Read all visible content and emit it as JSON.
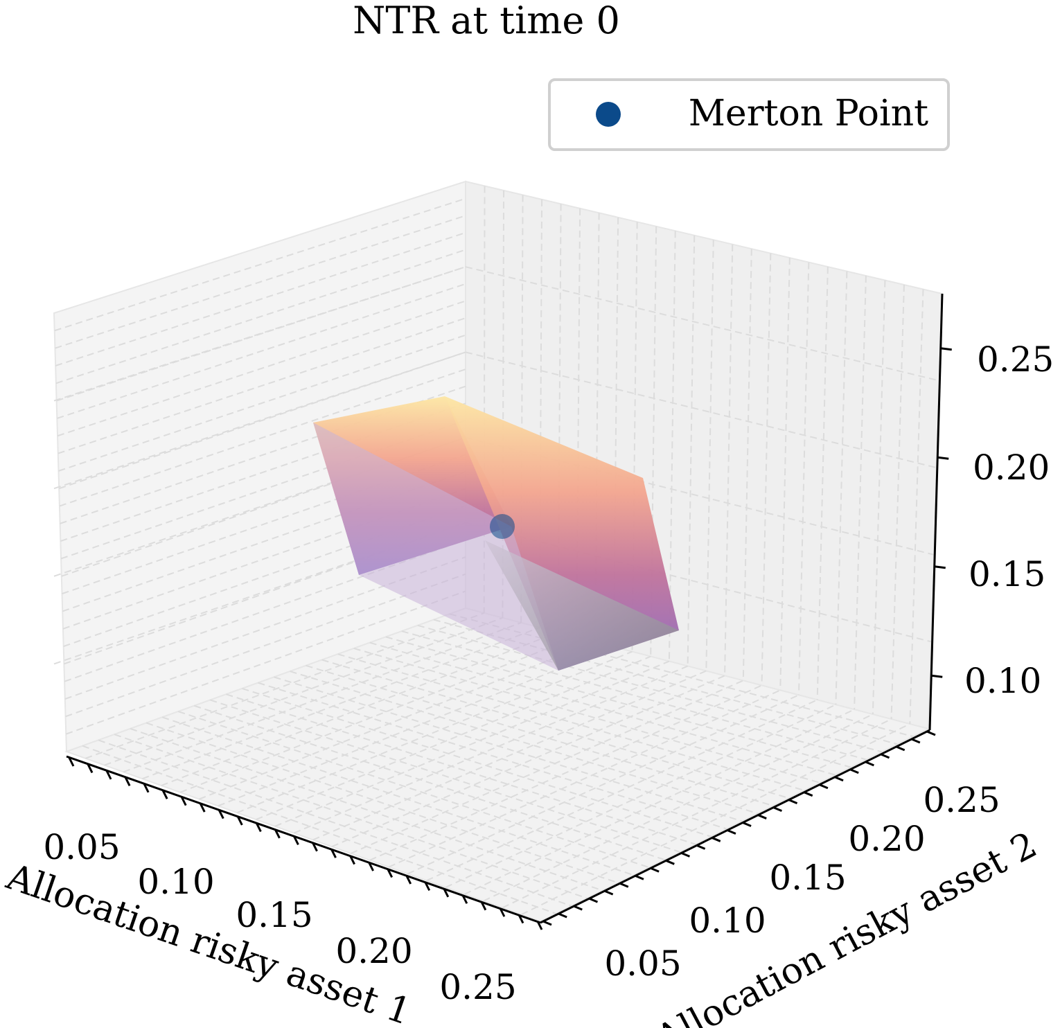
{
  "chart_data": {
    "type": "3d-surface",
    "title": "NTR at time 0",
    "xlabel": "Allocation risky asset 1",
    "ylabel": "Allocation risky asset 2",
    "zlabel": "",
    "x_ticks": [
      "0.05",
      "0.10",
      "0.15",
      "0.20",
      "0.25"
    ],
    "y_ticks": [
      "0.05",
      "0.10",
      "0.15",
      "0.20",
      "0.25"
    ],
    "z_ticks": [
      "0.10",
      "0.15",
      "0.20",
      "0.25"
    ],
    "xlim": [
      0.03,
      0.27
    ],
    "ylim": [
      0.03,
      0.27
    ],
    "zlim": [
      0.075,
      0.275
    ],
    "grid": true,
    "grid_style": "dashed",
    "legend": {
      "placement": "top-right",
      "entries": [
        {
          "label": "Merton Point",
          "color": "#0b4a8a",
          "marker": "circle"
        }
      ]
    },
    "series": [
      {
        "kind": "region",
        "colormap": "magma-light",
        "vertices": [
          [
            0.08,
            0.12,
            0.11
          ],
          [
            0.12,
            0.08,
            0.11
          ],
          [
            0.2,
            0.16,
            0.11
          ],
          [
            0.16,
            0.2,
            0.11
          ],
          [
            0.08,
            0.12,
            0.23
          ],
          [
            0.12,
            0.08,
            0.23
          ],
          [
            0.2,
            0.16,
            0.23
          ],
          [
            0.16,
            0.2,
            0.23
          ]
        ]
      },
      {
        "name": "Merton Point",
        "kind": "scatter",
        "color": "#0b4a8a",
        "points": [
          [
            0.14,
            0.14,
            0.17
          ]
        ]
      }
    ]
  }
}
